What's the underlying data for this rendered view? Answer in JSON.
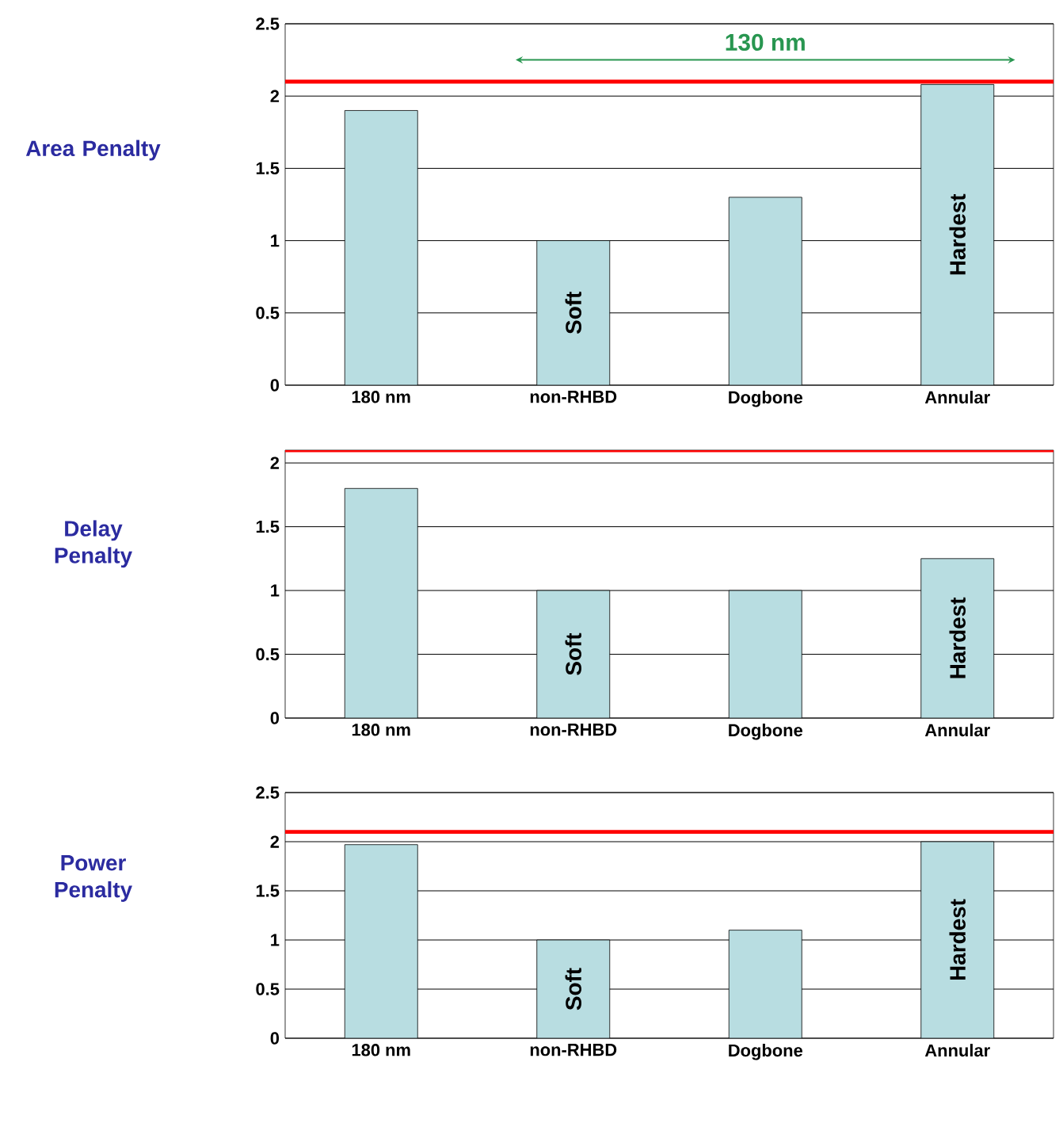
{
  "chart_data": [
    {
      "type": "bar",
      "ylabel": "Area Penalty",
      "categories": [
        "180 nm",
        "non-RHBD",
        "Dogbone",
        "Annular"
      ],
      "values": [
        1.9,
        1.0,
        1.3,
        2.08
      ],
      "color": "#b8dde1",
      "ylim": [
        0,
        2.5
      ],
      "yticks": [
        0,
        0.5,
        1,
        1.5,
        2,
        2.5
      ],
      "grid": "y",
      "ref_lines": [
        {
          "axis": "y",
          "value": 2.1,
          "color": "#ff0000"
        }
      ],
      "annotations": [
        "130 nm",
        "Soft",
        "Hardest"
      ]
    },
    {
      "type": "bar",
      "ylabel": "Delay Penalty",
      "categories": [
        "180 nm",
        "non-RHBD",
        "Dogbone",
        "Annular"
      ],
      "values": [
        1.8,
        1.0,
        1.0,
        1.25
      ],
      "color": "#b8dde1",
      "ylim": [
        0,
        2.1
      ],
      "yticks": [
        0,
        0.5,
        1,
        1.5,
        2
      ],
      "grid": "y",
      "ref_lines": [
        {
          "axis": "y",
          "value": 2.1,
          "color": "#ff0000"
        }
      ],
      "annotations": [
        "Soft",
        "Hardest"
      ]
    },
    {
      "type": "bar",
      "ylabel": "Power Penalty",
      "categories": [
        "180 nm",
        "non-RHBD",
        "Dogbone",
        "Annular"
      ],
      "values": [
        1.97,
        1.0,
        1.1,
        2.0
      ],
      "color": "#b8dde1",
      "ylim": [
        0,
        2.5
      ],
      "yticks": [
        0,
        0.5,
        1,
        1.5,
        2,
        2.5
      ],
      "grid": "y",
      "ref_lines": [
        {
          "axis": "y",
          "value": 2.1,
          "color": "#ff0000"
        }
      ],
      "annotations": [
        "Soft",
        "Hardest"
      ]
    }
  ]
}
